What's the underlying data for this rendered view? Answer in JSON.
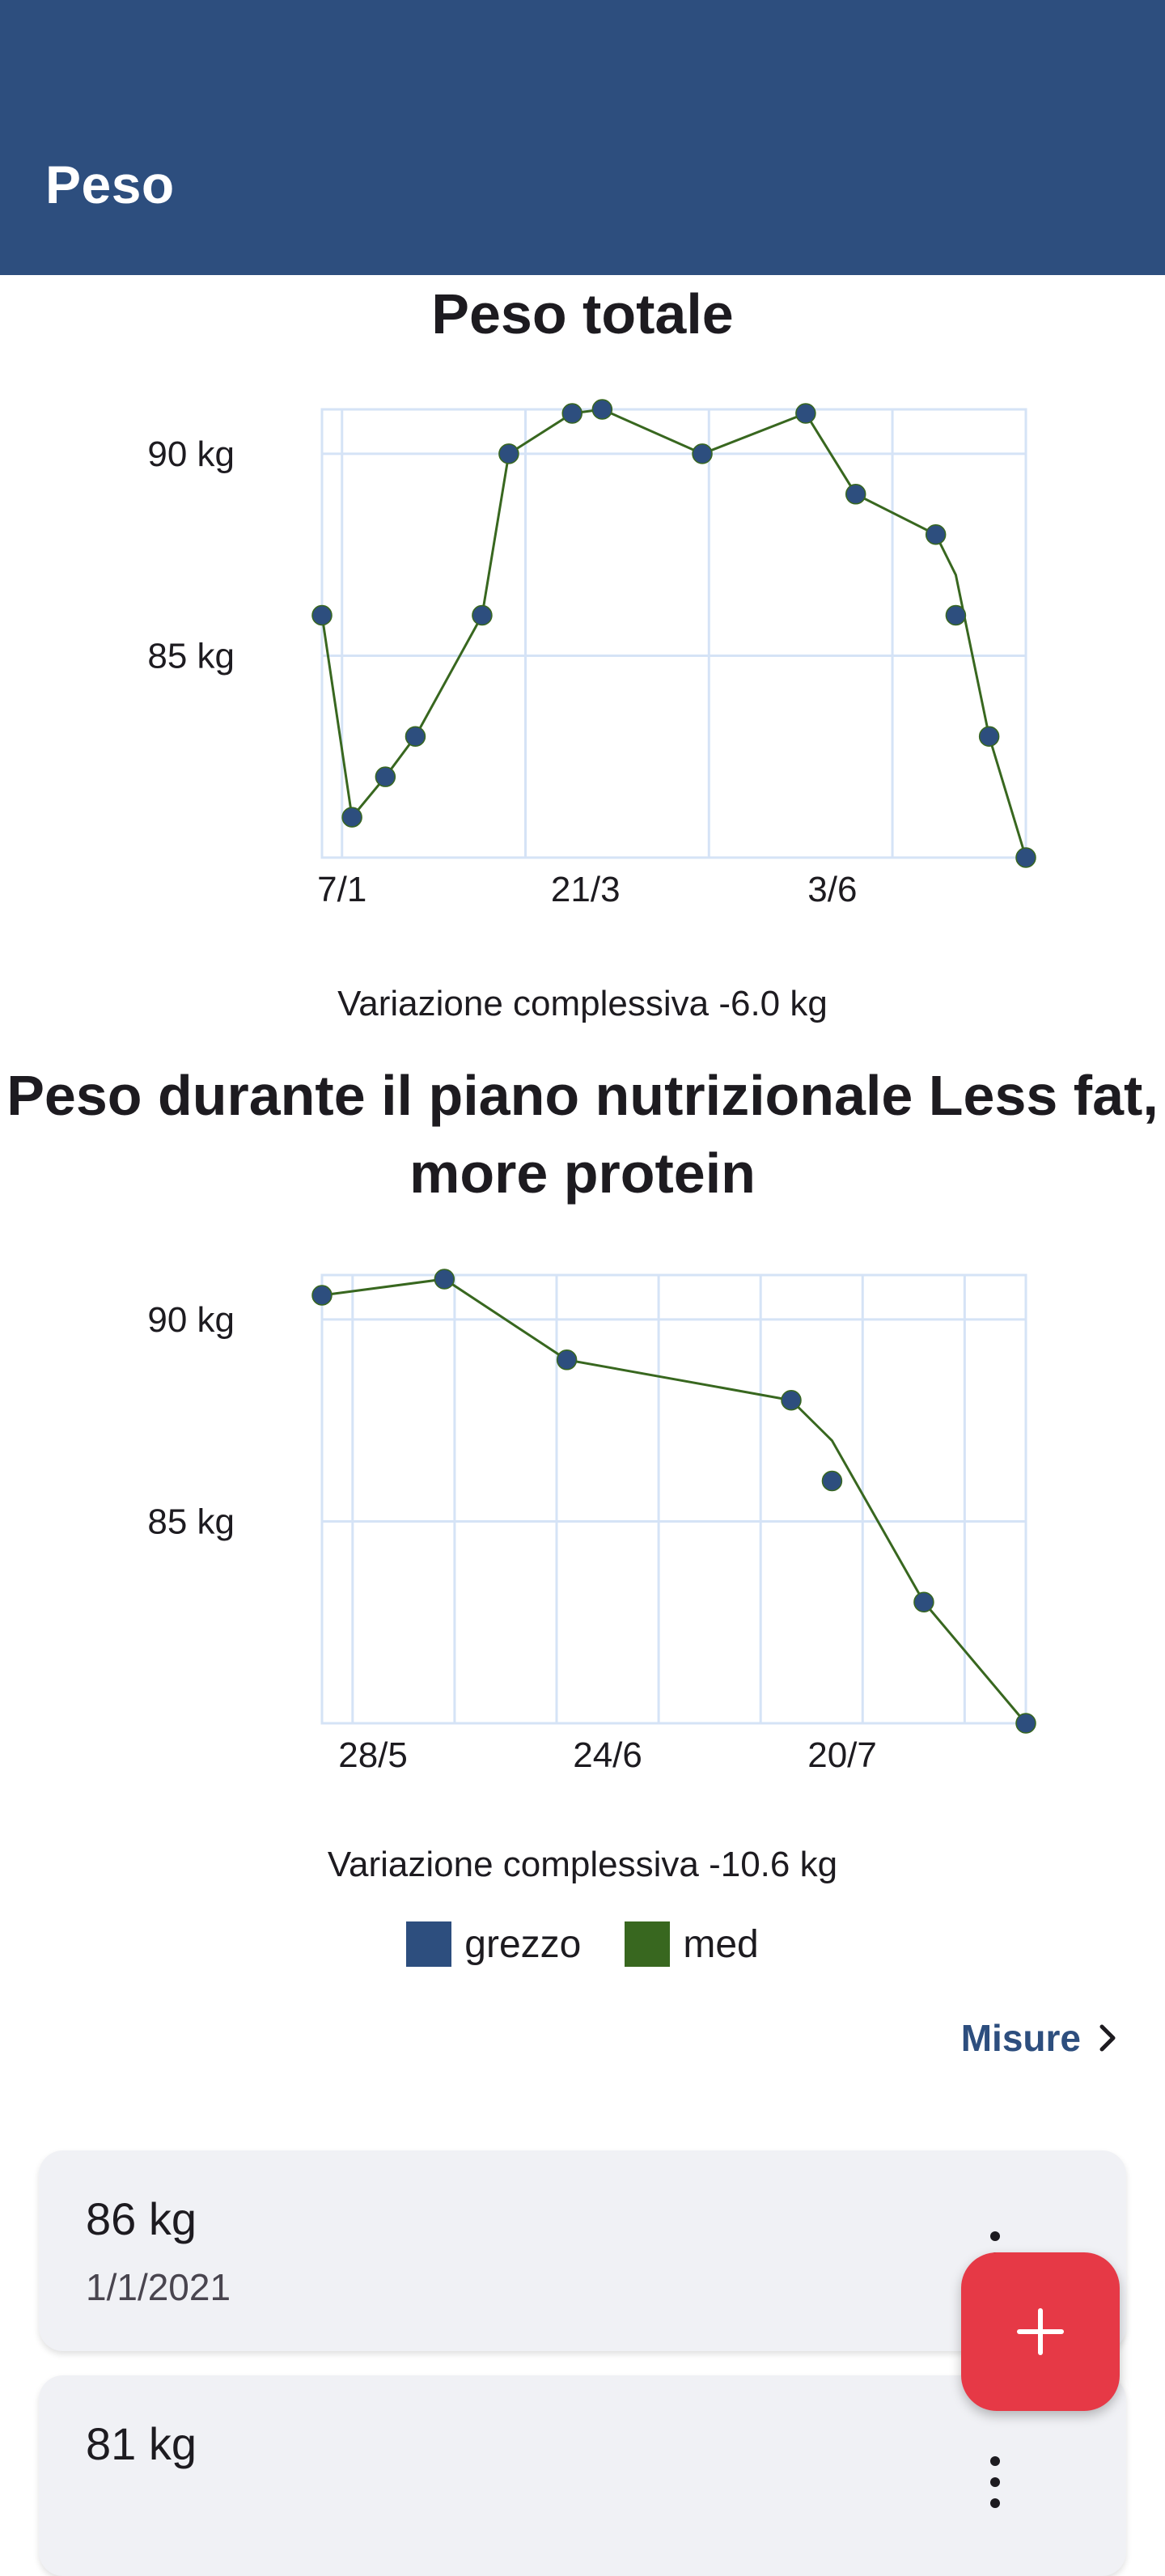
{
  "app_bar": {
    "title": "Peso"
  },
  "colors": {
    "primary": "#2d4e7e",
    "raw_series": "#2d4e7e",
    "med_series": "#38671f",
    "fab": "#e63946",
    "grid": "#d5e3f6"
  },
  "chart_data": [
    {
      "type": "line",
      "title": "Peso totale",
      "xlabel": "",
      "ylabel": "",
      "ylim": [
        80.0,
        91.1
      ],
      "x_range": [
        0,
        211
      ],
      "y_ticks": [
        {
          "value": 85,
          "label": "85 kg"
        },
        {
          "value": 90,
          "label": "90 kg"
        }
      ],
      "x_ticks": [
        {
          "value": 6,
          "label": "7/1"
        },
        {
          "value": 79,
          "label": "21/3"
        },
        {
          "value": 153,
          "label": "3/6"
        }
      ],
      "x_grid": [
        6,
        61,
        116,
        171
      ],
      "series": [
        {
          "name": "grezzo",
          "style": "points",
          "x": [
            0,
            9,
            19,
            28,
            48,
            56,
            75,
            84,
            114,
            145,
            160,
            184,
            190,
            200,
            211
          ],
          "values": [
            86,
            81,
            82,
            83,
            86,
            90,
            91,
            91.1,
            90,
            91,
            89,
            88,
            86,
            83,
            80
          ]
        },
        {
          "name": "med",
          "style": "line",
          "x": [
            0,
            9,
            19,
            28,
            48,
            56,
            75,
            84,
            114,
            145,
            160,
            184,
            190,
            200,
            211
          ],
          "values": [
            86,
            81,
            82,
            83,
            86,
            90,
            91,
            91.1,
            90,
            91,
            89,
            88,
            87,
            83,
            80
          ]
        }
      ],
      "summary": "Variazione complessiva -6.0 kg"
    },
    {
      "type": "line",
      "title": "Peso durante il piano nutrizionale Less fat, more protein",
      "xlabel": "",
      "ylabel": "",
      "ylim": [
        80.0,
        91.1
      ],
      "x_range": [
        0,
        69
      ],
      "y_ticks": [
        {
          "value": 85,
          "label": "85 kg"
        },
        {
          "value": 90,
          "label": "90 kg"
        }
      ],
      "x_ticks": [
        {
          "value": 5,
          "label": "28/5"
        },
        {
          "value": 28,
          "label": "24/6"
        },
        {
          "value": 51,
          "label": "20/7"
        }
      ],
      "x_grid": [
        3,
        13,
        23,
        33,
        43,
        53,
        63
      ],
      "series": [
        {
          "name": "grezzo",
          "style": "points",
          "x": [
            0,
            12,
            24,
            46,
            50,
            59,
            69
          ],
          "values": [
            90.6,
            91,
            89,
            88,
            86,
            83,
            80
          ]
        },
        {
          "name": "med",
          "style": "line",
          "x": [
            0,
            12,
            24,
            46,
            50,
            59,
            69
          ],
          "values": [
            90.6,
            91,
            89,
            88,
            87,
            83,
            80
          ]
        }
      ],
      "summary": "Variazione complessiva -10.6 kg"
    }
  ],
  "legend": {
    "items": [
      {
        "label": "grezzo",
        "color": "#2d4e7e"
      },
      {
        "label": "med",
        "color": "#38671f"
      }
    ]
  },
  "measures_link": {
    "label": "Misure"
  },
  "entries": [
    {
      "weight": "86 kg",
      "date": "1/1/2021"
    },
    {
      "weight": "81 kg",
      "date": ""
    }
  ],
  "icons": {
    "fab": "plus-icon",
    "menu": "more-vert-icon",
    "link": "chevron-right-icon"
  }
}
